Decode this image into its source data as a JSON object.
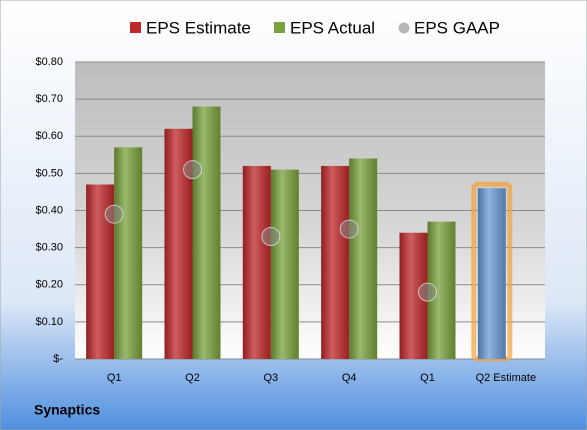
{
  "chart_data": {
    "type": "bar",
    "title": "Synaptics",
    "categories": [
      "Q1",
      "Q2",
      "Q3",
      "Q4",
      "Q1",
      "Q2 Estimate"
    ],
    "series": [
      {
        "name": "EPS Estimate",
        "color": "#c0282b",
        "colors": [
          "#c0282b",
          "#c0282b",
          "#c0282b",
          "#c0282b",
          "#c0282b",
          "#6b9bd6"
        ],
        "values": [
          0.47,
          0.62,
          0.52,
          0.52,
          0.34,
          0.46
        ]
      },
      {
        "name": "EPS Actual",
        "color": "#7aa23c",
        "values": [
          0.57,
          0.68,
          0.51,
          0.54,
          0.37,
          null
        ]
      },
      {
        "name": "EPS GAAP",
        "color": "#8a8a8a",
        "values": [
          0.39,
          0.51,
          0.33,
          0.35,
          0.18,
          null
        ]
      }
    ],
    "ylim": [
      0,
      0.8
    ],
    "yticks": [
      {
        "value": 0,
        "label": "$-"
      },
      {
        "value": 0.1,
        "label": "$0.10"
      },
      {
        "value": 0.2,
        "label": "$0.20"
      },
      {
        "value": 0.3,
        "label": "$0.30"
      },
      {
        "value": 0.4,
        "label": "$0.40"
      },
      {
        "value": 0.5,
        "label": "$0.50"
      },
      {
        "value": 0.6,
        "label": "$0.60"
      },
      {
        "value": 0.7,
        "label": "$0.70"
      },
      {
        "value": 0.8,
        "label": "$0.80"
      }
    ],
    "grid": true,
    "legend": "top"
  }
}
